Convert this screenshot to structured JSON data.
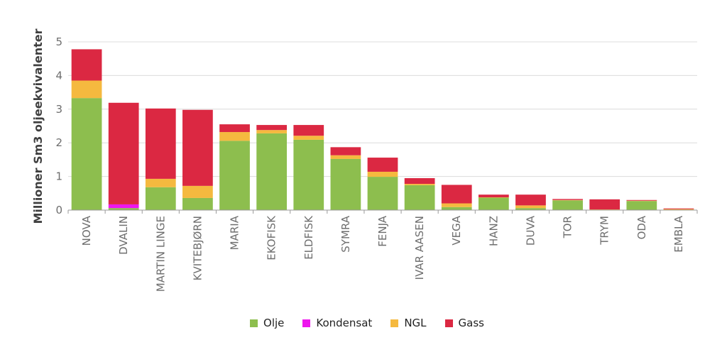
{
  "chart_data": {
    "type": "bar",
    "stacked": true,
    "ylabel": "Millioner Sm3 oljeekvivalenter",
    "xlabel": "",
    "ylim": [
      0,
      5
    ],
    "yticks": [
      "0",
      "1",
      "2",
      "3",
      "4",
      "5"
    ],
    "grid": true,
    "legend_position": "bottom",
    "categories": [
      "NOVA",
      "DVALIN",
      "MARTIN LINGE",
      "KVITEBJØRN",
      "MARIA",
      "EKOFISK",
      "ELDFISK",
      "SYMRA",
      "FENJA",
      "IVAR AASEN",
      "VEGA",
      "HANZ",
      "DUVA",
      "TOR",
      "TRYM",
      "ODA",
      "EMBLA"
    ],
    "series": [
      {
        "name": "Olje",
        "color": "#8dbe4e",
        "values": [
          3.33,
          0.06,
          0.68,
          0.36,
          2.06,
          2.28,
          2.09,
          1.52,
          0.99,
          0.74,
          0.09,
          0.37,
          0.06,
          0.29,
          0.01,
          0.27,
          0.01
        ]
      },
      {
        "name": "Kondensat",
        "color": "#ee16ee",
        "values": [
          0.0,
          0.11,
          0.0,
          0.0,
          0.0,
          0.0,
          0.0,
          0.0,
          0.0,
          0.0,
          0.0,
          0.0,
          0.0,
          0.0,
          0.0,
          0.0,
          0.0
        ]
      },
      {
        "name": "NGL",
        "color": "#f5b93f",
        "values": [
          0.52,
          0.0,
          0.25,
          0.36,
          0.26,
          0.1,
          0.12,
          0.11,
          0.15,
          0.04,
          0.11,
          0.01,
          0.08,
          0.01,
          0.01,
          0.01,
          0.02
        ]
      },
      {
        "name": "Gass",
        "color": "#db2842",
        "values": [
          0.93,
          3.02,
          2.09,
          2.26,
          0.23,
          0.15,
          0.32,
          0.24,
          0.42,
          0.17,
          0.55,
          0.08,
          0.32,
          0.03,
          0.3,
          0.02,
          0.02
        ]
      }
    ]
  }
}
